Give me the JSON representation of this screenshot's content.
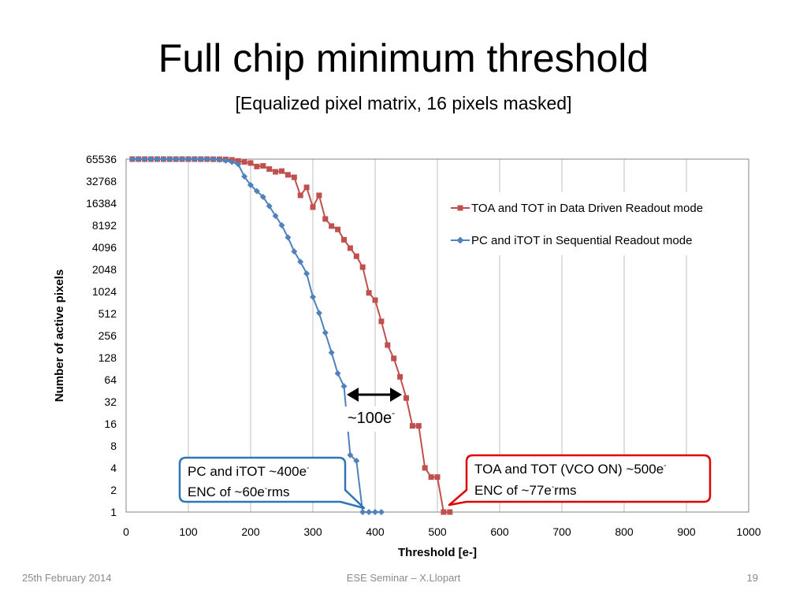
{
  "slide": {
    "title": "Full chip minimum threshold",
    "subtitle": "[Equalized pixel matrix, 16 pixels masked]",
    "footer_left": "25th February 2014",
    "footer_center": "ESE Seminar – X.Llopart",
    "page_number": "19"
  },
  "chart_data": {
    "type": "line",
    "xlabel": "Threshold [e-]",
    "ylabel": "Number of active pixels",
    "xlim": [
      0,
      1000
    ],
    "x_ticks": [
      "0",
      "100",
      "200",
      "300",
      "400",
      "500",
      "600",
      "700",
      "800",
      "900",
      "1000"
    ],
    "y_scale": "log2",
    "ylim": [
      1,
      65536
    ],
    "y_ticks": [
      "1",
      "2",
      "4",
      "8",
      "16",
      "32",
      "64",
      "128",
      "256",
      "512",
      "1024",
      "2048",
      "4096",
      "8192",
      "16384",
      "32768",
      "65536"
    ],
    "grid": "vertical",
    "legend_position": "upper-right",
    "series": [
      {
        "name": "TOA and TOT in Data Driven Readout mode",
        "color": "#c0504d",
        "marker": "square",
        "points": [
          [
            10,
            65520
          ],
          [
            20,
            65520
          ],
          [
            30,
            65520
          ],
          [
            40,
            65520
          ],
          [
            50,
            65520
          ],
          [
            60,
            65520
          ],
          [
            70,
            65520
          ],
          [
            80,
            65520
          ],
          [
            90,
            65520
          ],
          [
            100,
            65520
          ],
          [
            110,
            65520
          ],
          [
            120,
            65520
          ],
          [
            130,
            65500
          ],
          [
            140,
            65400
          ],
          [
            150,
            65300
          ],
          [
            160,
            65000
          ],
          [
            170,
            64000
          ],
          [
            180,
            62000
          ],
          [
            190,
            60000
          ],
          [
            200,
            58000
          ],
          [
            210,
            52000
          ],
          [
            220,
            53000
          ],
          [
            230,
            48000
          ],
          [
            240,
            44000
          ],
          [
            250,
            45000
          ],
          [
            260,
            40000
          ],
          [
            270,
            37000
          ],
          [
            280,
            21000
          ],
          [
            290,
            27000
          ],
          [
            300,
            14500
          ],
          [
            310,
            21000
          ],
          [
            320,
            10000
          ],
          [
            330,
            8000
          ],
          [
            340,
            7200
          ],
          [
            350,
            5200
          ],
          [
            360,
            4000
          ],
          [
            370,
            3100
          ],
          [
            380,
            2200
          ],
          [
            390,
            980
          ],
          [
            400,
            780
          ],
          [
            410,
            400
          ],
          [
            420,
            190
          ],
          [
            430,
            125
          ],
          [
            440,
            70
          ],
          [
            450,
            36
          ],
          [
            460,
            15
          ],
          [
            470,
            15
          ],
          [
            480,
            4
          ],
          [
            490,
            3
          ],
          [
            500,
            3
          ],
          [
            510,
            1
          ],
          [
            520,
            1
          ]
        ]
      },
      {
        "name": "PC and iTOT in Sequential Readout mode",
        "color": "#4f81bd",
        "marker": "diamond",
        "points": [
          [
            10,
            65520
          ],
          [
            20,
            65520
          ],
          [
            30,
            65520
          ],
          [
            40,
            65520
          ],
          [
            50,
            65520
          ],
          [
            60,
            65520
          ],
          [
            70,
            65520
          ],
          [
            80,
            65520
          ],
          [
            90,
            65520
          ],
          [
            100,
            65520
          ],
          [
            110,
            65520
          ],
          [
            120,
            65520
          ],
          [
            130,
            65500
          ],
          [
            140,
            65200
          ],
          [
            150,
            64500
          ],
          [
            160,
            62500
          ],
          [
            170,
            60000
          ],
          [
            180,
            56000
          ],
          [
            190,
            38000
          ],
          [
            200,
            29000
          ],
          [
            210,
            24000
          ],
          [
            220,
            20000
          ],
          [
            230,
            15000
          ],
          [
            240,
            11000
          ],
          [
            250,
            8200
          ],
          [
            260,
            5600
          ],
          [
            270,
            3600
          ],
          [
            280,
            2600
          ],
          [
            290,
            1800
          ],
          [
            300,
            860
          ],
          [
            310,
            520
          ],
          [
            320,
            280
          ],
          [
            330,
            150
          ],
          [
            340,
            78
          ],
          [
            350,
            52
          ],
          [
            360,
            6
          ],
          [
            370,
            5
          ],
          [
            380,
            1
          ],
          [
            390,
            1
          ],
          [
            400,
            1
          ],
          [
            410,
            1
          ]
        ]
      }
    ],
    "annotations": {
      "arrow_label": "~100e",
      "arrow_label_sup": "-",
      "arrow_from_x": 350,
      "arrow_to_x": 450,
      "pc_box": {
        "line1": "PC and iTOT ~400e",
        "line1_sup": "-",
        "line2a": "ENC of ~60e",
        "line2_sup": "-",
        "line2b": "rms",
        "border_color": "#2e75b6"
      },
      "toa_box": {
        "line1": "TOA and TOT (VCO ON) ~500e",
        "line1_sup": "-",
        "line2a": "ENC of ~77e",
        "line2_sup": "-",
        "line2b": "rms",
        "border_color": "#e00000"
      }
    }
  }
}
